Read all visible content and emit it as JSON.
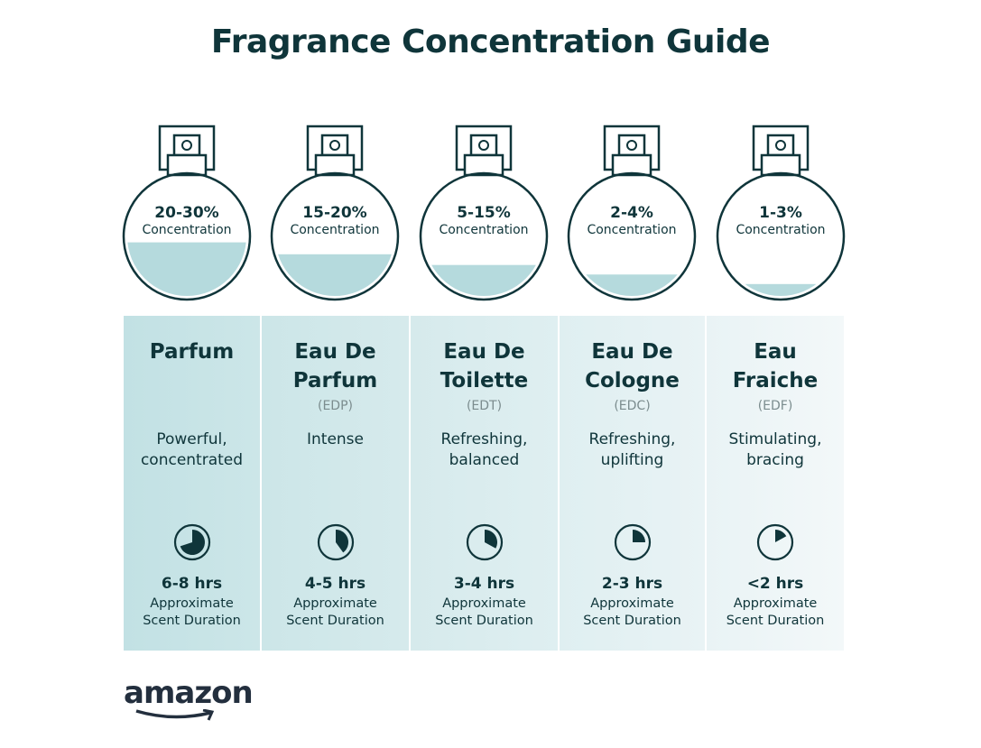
{
  "title": "Fragrance Concentration Guide",
  "colors": {
    "ink": "#0f353a",
    "liquid": "#b5dadd",
    "col_start": "#c2e1e4",
    "col_end": "#f3f8f9"
  },
  "logo_text": "amazon",
  "items": [
    {
      "concentration": "20-30%",
      "conc_label": "Concentration",
      "fill_level": 0.45,
      "name_line1": "Parfum",
      "name_line2": "",
      "abbr": "",
      "desc_line1": "Powerful,",
      "desc_line2": "concentrated",
      "duration": "6-8 hrs",
      "duration_fraction": 0.7,
      "dur_label1": "Approximate",
      "dur_label2": "Scent Duration"
    },
    {
      "concentration": "15-20%",
      "conc_label": "Concentration",
      "fill_level": 0.35,
      "name_line1": "Eau De",
      "name_line2": "Parfum",
      "abbr": "(EDP)",
      "desc_line1": "Intense",
      "desc_line2": "",
      "duration": "4-5 hrs",
      "duration_fraction": 0.4,
      "dur_label1": "Approximate",
      "dur_label2": "Scent Duration"
    },
    {
      "concentration": "5-15%",
      "conc_label": "Concentration",
      "fill_level": 0.26,
      "name_line1": "Eau De",
      "name_line2": "Toilette",
      "abbr": "(EDT)",
      "desc_line1": "Refreshing,",
      "desc_line2": "balanced",
      "duration": "3-4 hrs",
      "duration_fraction": 0.33,
      "dur_label1": "Approximate",
      "dur_label2": "Scent Duration"
    },
    {
      "concentration": "2-4%",
      "conc_label": "Concentration",
      "fill_level": 0.18,
      "name_line1": "Eau De",
      "name_line2": "Cologne",
      "abbr": "(EDC)",
      "desc_line1": "Refreshing,",
      "desc_line2": "uplifting",
      "duration": "2-3 hrs",
      "duration_fraction": 0.25,
      "dur_label1": "Approximate",
      "dur_label2": "Scent Duration"
    },
    {
      "concentration": "1-3%",
      "conc_label": "Concentration",
      "fill_level": 0.1,
      "name_line1": "Eau",
      "name_line2": "Fraiche",
      "abbr": "(EDF)",
      "desc_line1": "Stimulating,",
      "desc_line2": "bracing",
      "duration": "<2 hrs",
      "duration_fraction": 0.17,
      "dur_label1": "Approximate",
      "dur_label2": "Scent Duration"
    }
  ]
}
